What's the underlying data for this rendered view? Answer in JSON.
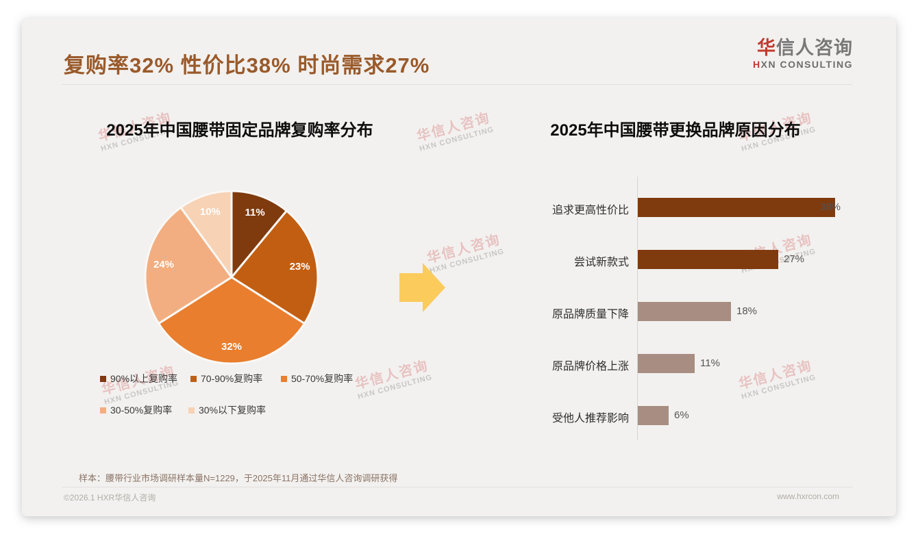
{
  "page": {
    "title": "复购率32% 性价比38% 时尚需求27%",
    "logo": {
      "zh_first": "华",
      "zh_rest": "信人咨询",
      "en_first": "H",
      "en_rest": "XN CONSULTING"
    },
    "watermark": {
      "zh": "华信人咨询",
      "en": "HXN CONSULTING"
    },
    "sample_note": "样本：腰带行业市场调研样本量N=1229，于2025年11月通过华信人咨询调研获得",
    "footer": {
      "copyright": "©2026.1 HXR华信人咨询",
      "website": "www.hxrcon.com"
    }
  },
  "colors": {
    "title_brown": "#9a5a2b",
    "logo_red": "#c13a2e",
    "arrow_yellow": "#fbcb5c",
    "card_bg": "#f2f1ef",
    "dark_brown": "#7f3a0e",
    "taupe": "#a78d82"
  },
  "chart_data": [
    {
      "type": "pie",
      "title": "2025年中国腰带固定品牌复购率分布",
      "labels": [
        "90%以上复购率",
        "70-90%复购率",
        "50-70%复购率",
        "30-50%复购率",
        "30%以下复购率"
      ],
      "values": [
        11,
        23,
        32,
        24,
        10
      ],
      "value_labels": [
        "11%",
        "23%",
        "32%",
        "24%",
        "10%"
      ],
      "colors": [
        "#7f3a0e",
        "#c25e12",
        "#e87e2e",
        "#f2ae80",
        "#f7d2b5"
      ],
      "start_angle_deg": 0,
      "direction": "clockwise",
      "legend_position": "bottom",
      "slice_label_color": "#ffffff"
    },
    {
      "type": "bar",
      "orientation": "horizontal",
      "title": "2025年中国腰带更换品牌原因分布",
      "categories": [
        "追求更高性价比",
        "尝试新款式",
        "原品牌质量下降",
        "原品牌价格上涨",
        "受他人推荐影响"
      ],
      "values": [
        38,
        27,
        18,
        11,
        6
      ],
      "value_labels": [
        "38%",
        "27%",
        "18%",
        "11%",
        "6%"
      ],
      "bar_colors": [
        "#7f3a0e",
        "#7f3a0e",
        "#a78d82",
        "#a78d82",
        "#a78d82"
      ],
      "xlim": [
        0,
        40
      ],
      "grid": false,
      "axis_line": true
    }
  ]
}
